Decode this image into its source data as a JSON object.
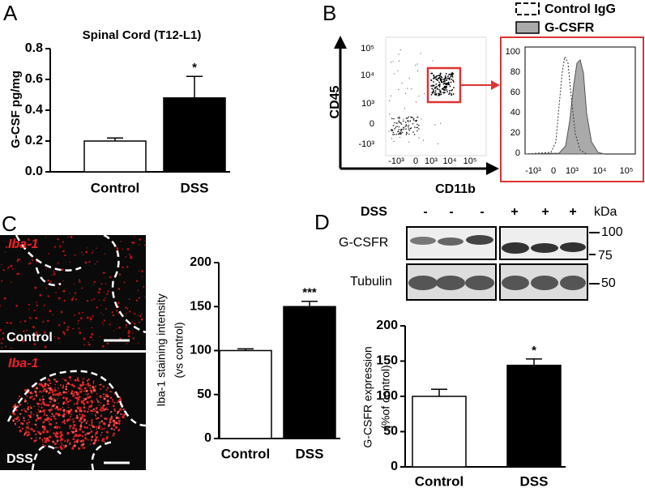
{
  "panel_labels": [
    "A",
    "B",
    "C",
    "D"
  ],
  "chart_data": [
    {
      "type": "bar",
      "title": "Spinal Cord (T12-L1)",
      "ylabel": [
        "G-CSF pg/mg"
      ],
      "categories": [
        "Control",
        "DSS"
      ],
      "values": [
        0.2,
        0.48
      ],
      "errors": [
        0.02,
        0.14
      ],
      "colors": [
        "#ffffff",
        "#000000"
      ],
      "annotations": [
        null,
        "*"
      ],
      "ylim": [
        0,
        0.8
      ],
      "yticks": [
        {
          "value": 0,
          "label": "0.0"
        },
        0.2,
        0.4,
        0.6,
        0.8
      ]
    },
    {
      "type": "bar",
      "ylabel": [
        "Iba-1 staining intensity",
        "(vs control)"
      ],
      "categories": [
        "Control",
        "DSS"
      ],
      "values": [
        100,
        150
      ],
      "errors": [
        2,
        6
      ],
      "colors": [
        "#ffffff",
        "#000000"
      ],
      "annotations": [
        null,
        "***"
      ],
      "ylim": [
        0,
        200
      ],
      "yticks": [
        0,
        50,
        100,
        150,
        200
      ]
    },
    {
      "type": "bar",
      "ylabel": [
        "G-CSFR expression",
        "(%of control)"
      ],
      "categories": [
        "Control",
        "DSS"
      ],
      "values": [
        100,
        144
      ],
      "errors": [
        10,
        9
      ],
      "colors": [
        "#ffffff",
        "#000000"
      ],
      "annotations": [
        null,
        "*"
      ],
      "ylim": [
        0,
        200
      ],
      "yticks": [
        0,
        50,
        100,
        150,
        200
      ]
    }
  ],
  "flow": {
    "y_label": "CD45",
    "x_label": "CD11b",
    "y_ticks": [
      "10⁵",
      "10⁴",
      "10³",
      "0",
      "-10³"
    ],
    "x_ticks": [
      "-10³",
      "0",
      "10³",
      "10⁴",
      "10⁵"
    ],
    "histogram": {
      "legend": [
        "Control IgG",
        "G-CSFR"
      ],
      "y_ticks": [
        100,
        80,
        60,
        40,
        20,
        0
      ],
      "x_ticks": [
        "-10³",
        "0",
        "10³",
        "10⁴",
        "10⁵"
      ]
    }
  },
  "images": {
    "stain": "Iba-1",
    "top": "Control",
    "bottom": "DSS"
  },
  "blot": {
    "treatment_label": "DSS",
    "lanes": [
      "-",
      "-",
      "-",
      "+",
      "+",
      "+"
    ],
    "unit": "kDa",
    "rows": [
      "G-CSFR",
      "Tubulin"
    ],
    "markers": [
      "100",
      "75",
      "50"
    ]
  }
}
